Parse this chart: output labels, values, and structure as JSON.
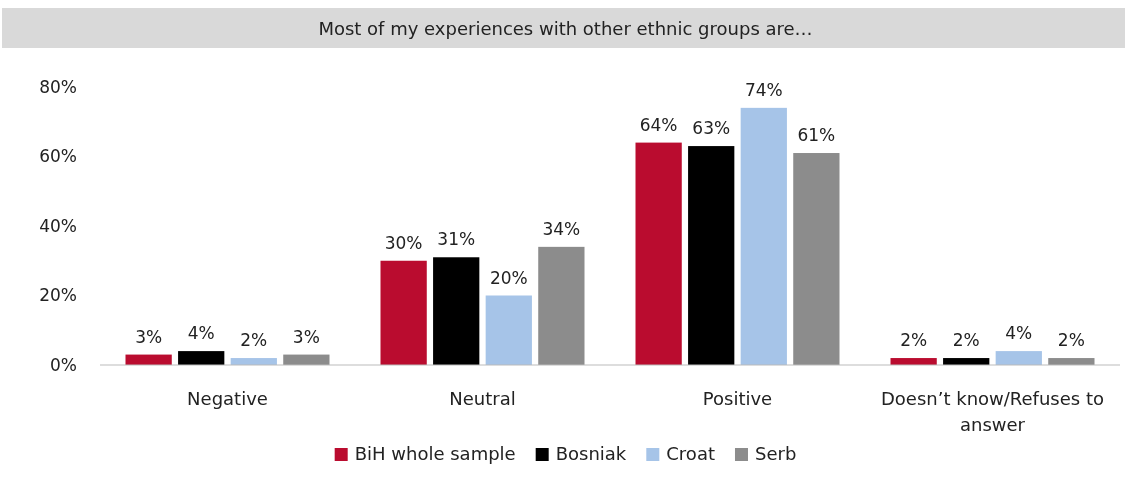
{
  "chart_data": {
    "type": "bar",
    "title": "Most of my experiences with other ethnic groups are…",
    "categories": [
      "Negative",
      "Neutral",
      "Positive",
      "Doesn’t know/Refuses to answer"
    ],
    "series": [
      {
        "name": "BiH whole sample",
        "color": "#ba0c2f",
        "values": [
          3,
          30,
          64,
          2
        ],
        "value_labels": [
          "3%",
          "30%",
          "64%",
          "2%"
        ]
      },
      {
        "name": "Bosniak",
        "color": "#000000",
        "values": [
          4,
          31,
          63,
          2
        ],
        "value_labels": [
          "4%",
          "31%",
          "63%",
          "2%"
        ]
      },
      {
        "name": "Croat",
        "color": "#a6c4e8",
        "values": [
          2,
          20,
          74,
          4
        ],
        "value_labels": [
          "2%",
          "20%",
          "74%",
          "4%"
        ]
      },
      {
        "name": "Serb",
        "color": "#8c8c8c",
        "values": [
          3,
          34,
          61,
          2
        ],
        "value_labels": [
          "3%",
          "34%",
          "61%",
          "2%"
        ]
      }
    ],
    "ylim": [
      0,
      80
    ],
    "yticks": [
      {
        "value": 0,
        "label": "0%"
      },
      {
        "value": 20,
        "label": "20%"
      },
      {
        "value": 40,
        "label": "40%"
      },
      {
        "value": 60,
        "label": "60%"
      },
      {
        "value": 80,
        "label": "80%"
      }
    ],
    "legend": "bottom",
    "grid": false
  }
}
